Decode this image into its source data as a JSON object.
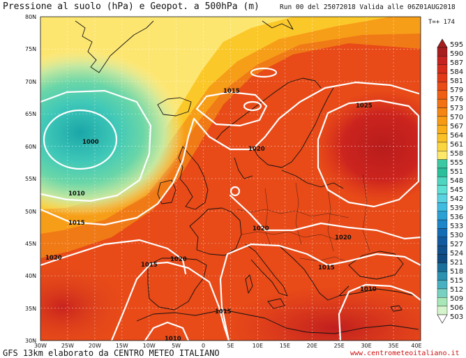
{
  "header": {
    "title": "Pressione al suolo (hPa) e Geopot. a 500hPa (m)",
    "run_info": "Run 00 del 25072018  Valida alle 06Z01AUG2018",
    "forecast_step": "T=+ 174"
  },
  "footer": {
    "credit": "GFS 13km elaborato da CENTRO METEO ITALIANO",
    "website": "www.centrometeoitaliano.it"
  },
  "axes": {
    "lat_labels": [
      "80N",
      "75N",
      "70N",
      "65N",
      "60N",
      "55N",
      "50N",
      "45N",
      "40N",
      "35N",
      "30N"
    ],
    "lon_labels": [
      "30W",
      "25W",
      "20W",
      "15W",
      "10W",
      "5W",
      "0",
      "5E",
      "10E",
      "15E",
      "20E",
      "25E",
      "30E",
      "35E",
      "40E"
    ]
  },
  "legend": {
    "values": [
      "595",
      "590",
      "587",
      "584",
      "581",
      "579",
      "576",
      "573",
      "570",
      "567",
      "564",
      "561",
      "558",
      "555",
      "551",
      "548",
      "545",
      "542",
      "539",
      "536",
      "533",
      "530",
      "527",
      "524",
      "521",
      "518",
      "515",
      "512",
      "509",
      "506",
      "503"
    ],
    "colors": [
      "#a81e1e",
      "#c52320",
      "#d62c1c",
      "#e23a18",
      "#ea4c16",
      "#ef5f14",
      "#f27214",
      "#f58614",
      "#f79a14",
      "#f9ae1a",
      "#fbc228",
      "#fcd640",
      "#fde86a",
      "#3cc8a2",
      "#2cbf9c",
      "#4ed6c0",
      "#5ee0d4",
      "#5ad2e0",
      "#3fbce0",
      "#2aa0d4",
      "#1c86c8",
      "#146cb4",
      "#125aa0",
      "#10508c",
      "#0f4a80",
      "#1a6e9a",
      "#2c92b0",
      "#48b0c0",
      "#78d0c0",
      "#a8e8b8",
      "#d4f4cc"
    ],
    "colors_note": "red-orange high geopotential to cyan/blue low geopotential"
  },
  "isobars": [
    {
      "label": "1000"
    },
    {
      "label": "1010"
    },
    {
      "label": "1015"
    },
    {
      "label": "1015"
    },
    {
      "label": "1020"
    },
    {
      "label": "1020"
    },
    {
      "label": "1020"
    },
    {
      "label": "1025"
    },
    {
      "label": "1020"
    },
    {
      "label": "1015"
    },
    {
      "label": "1015"
    },
    {
      "label": "1015"
    },
    {
      "label": "1020"
    },
    {
      "label": "1010"
    },
    {
      "label": "1010"
    }
  ]
}
